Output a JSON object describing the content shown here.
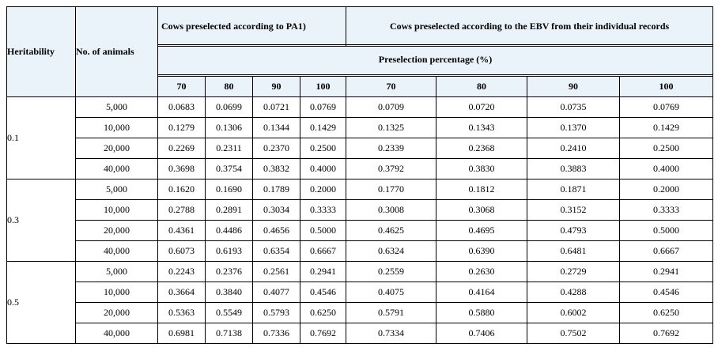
{
  "headers": {
    "heritability": "Heritability",
    "animals": "No. of animals",
    "pa1": "Cows preselected according to PA1)",
    "ebv": "Cows preselected according to the EBV from their individual records",
    "preselection": "Preselection percentage (%)",
    "percentages": [
      "70",
      "80",
      "90",
      "100",
      "70",
      "80",
      "90",
      "100"
    ]
  },
  "groups": [
    {
      "h2": "0.1",
      "rows": [
        {
          "n": "5,000",
          "v": [
            "0.0683",
            "0.0699",
            "0.0721",
            "0.0769",
            "0.0709",
            "0.0720",
            "0.0735",
            "0.0769"
          ]
        },
        {
          "n": "10,000",
          "v": [
            "0.1279",
            "0.1306",
            "0.1344",
            "0.1429",
            "0.1325",
            "0.1343",
            "0.1370",
            "0.1429"
          ]
        },
        {
          "n": "20,000",
          "v": [
            "0.2269",
            "0.2311",
            "0.2370",
            "0.2500",
            "0.2339",
            "0.2368",
            "0.2410",
            "0.2500"
          ]
        },
        {
          "n": "40,000",
          "v": [
            "0.3698",
            "0.3754",
            "0.3832",
            "0.4000",
            "0.3792",
            "0.3830",
            "0.3883",
            "0.4000"
          ]
        }
      ]
    },
    {
      "h2": "0.3",
      "rows": [
        {
          "n": "5,000",
          "v": [
            "0.1620",
            "0.1690",
            "0.1789",
            "0.2000",
            "0.1770",
            "0.1812",
            "0.1871",
            "0.2000"
          ]
        },
        {
          "n": "10,000",
          "v": [
            "0.2788",
            "0.2891",
            "0.3034",
            "0.3333",
            "0.3008",
            "0.3068",
            "0.3152",
            "0.3333"
          ]
        },
        {
          "n": "20,000",
          "v": [
            "0.4361",
            "0.4486",
            "0.4656",
            "0.5000",
            "0.4625",
            "0.4695",
            "0.4793",
            "0.5000"
          ]
        },
        {
          "n": "40,000",
          "v": [
            "0.6073",
            "0.6193",
            "0.6354",
            "0.6667",
            "0.6324",
            "0.6390",
            "0.6481",
            "0.6667"
          ]
        }
      ]
    },
    {
      "h2": "0.5",
      "rows": [
        {
          "n": "5,000",
          "v": [
            "0.2243",
            "0.2376",
            "0.2561",
            "0.2941",
            "0.2559",
            "0.2630",
            "0.2729",
            "0.2941"
          ]
        },
        {
          "n": "10,000",
          "v": [
            "0.3664",
            "0.3840",
            "0.4077",
            "0.4546",
            "0.4075",
            "0.4164",
            "0.4288",
            "0.4546"
          ]
        },
        {
          "n": "20,000",
          "v": [
            "0.5363",
            "0.5549",
            "0.5793",
            "0.6250",
            "0.5791",
            "0.5880",
            "0.6002",
            "0.6250"
          ]
        },
        {
          "n": "40,000",
          "v": [
            "0.6981",
            "0.7138",
            "0.7336",
            "0.7692",
            "0.7334",
            "0.7406",
            "0.7502",
            "0.7692"
          ]
        }
      ]
    }
  ]
}
